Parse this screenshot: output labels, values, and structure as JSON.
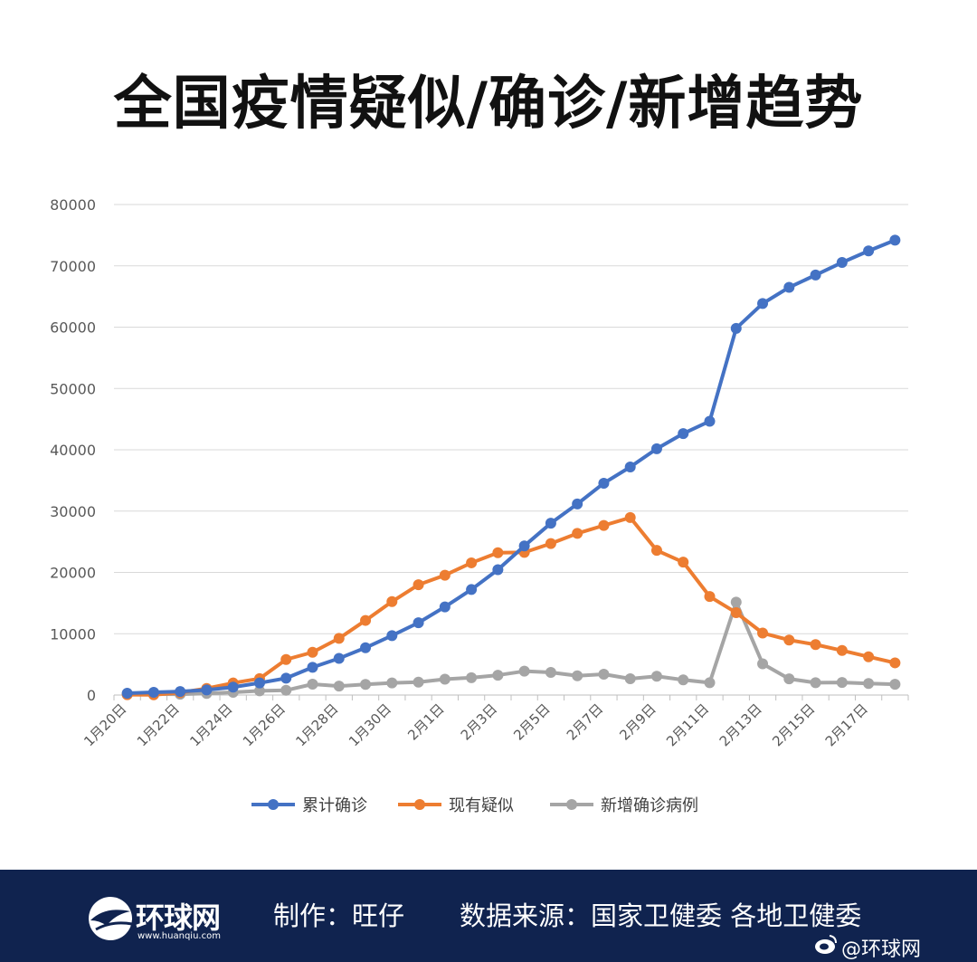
{
  "title": "全国疫情疑似/确诊/新增趋势",
  "chart_data": {
    "type": "line",
    "title": "全国疫情疑似/确诊/新增趋势",
    "xlabel": "",
    "ylabel": "",
    "ylim": [
      0,
      80000
    ],
    "yticks": [
      "0",
      "10000",
      "20000",
      "30000",
      "40000",
      "50000",
      "60000",
      "70000",
      "80000"
    ],
    "x": [
      "1月20日",
      "1月21日",
      "1月22日",
      "1月23日",
      "1月24日",
      "1月25日",
      "1月26日",
      "1月27日",
      "1月28日",
      "1月29日",
      "1月30日",
      "1月31日",
      "2月1日",
      "2月2日",
      "2月3日",
      "2月4日",
      "2月5日",
      "2月6日",
      "2月7日",
      "2月8日",
      "2月9日",
      "2月10日",
      "2月11日",
      "2月12日",
      "2月13日",
      "2月14日",
      "2月15日",
      "2月16日",
      "2月17日",
      "2月18日"
    ],
    "x_tick_labels": [
      "1月20日",
      "1月22日",
      "1月24日",
      "1月26日",
      "1月28日",
      "1月30日",
      "2月1日",
      "2月3日",
      "2月5日",
      "2月7日",
      "2月9日",
      "2月11日",
      "2月13日",
      "2月15日",
      "2月17日"
    ],
    "grid": true,
    "legend_position": "bottom",
    "series": [
      {
        "name": "累计确诊",
        "color": "#4472c4",
        "values": [
          291,
          440,
          571,
          830,
          1287,
          1975,
          2744,
          4515,
          5974,
          7711,
          9692,
          11791,
          14380,
          17205,
          20438,
          24324,
          28018,
          31161,
          34546,
          37198,
          40171,
          42638,
          44653,
          59804,
          63851,
          66492,
          68500,
          70548,
          72436,
          74185
        ]
      },
      {
        "name": "现有疑似",
        "color": "#ed7d31",
        "values": [
          54,
          37,
          393,
          1072,
          1965,
          2684,
          5794,
          6973,
          9239,
          12167,
          15238,
          17988,
          19544,
          21558,
          23214,
          23260,
          24702,
          26359,
          27657,
          28942,
          23589,
          21675,
          16067,
          13435,
          10109,
          8969,
          8228,
          7264,
          6242,
          5248
        ]
      },
      {
        "name": "新增确诊病例",
        "color": "#a5a5a5",
        "values": [
          77,
          149,
          131,
          259,
          444,
          688,
          769,
          1771,
          1459,
          1737,
          1982,
          2102,
          2590,
          2829,
          3235,
          3887,
          3694,
          3143,
          3399,
          2656,
          3062,
          2478,
          2015,
          15152,
          5090,
          2641,
          2009,
          2048,
          1886,
          1749
        ]
      }
    ]
  },
  "footer": {
    "logo_text": "环球网",
    "logo_url": "www.huanqiu.com",
    "credit": "制作：旺仔",
    "source": "数据来源：国家卫健委 各地卫健委",
    "watermark": "@环球网",
    "colors": {
      "background": "#10234f",
      "text": "#ffffff"
    }
  }
}
